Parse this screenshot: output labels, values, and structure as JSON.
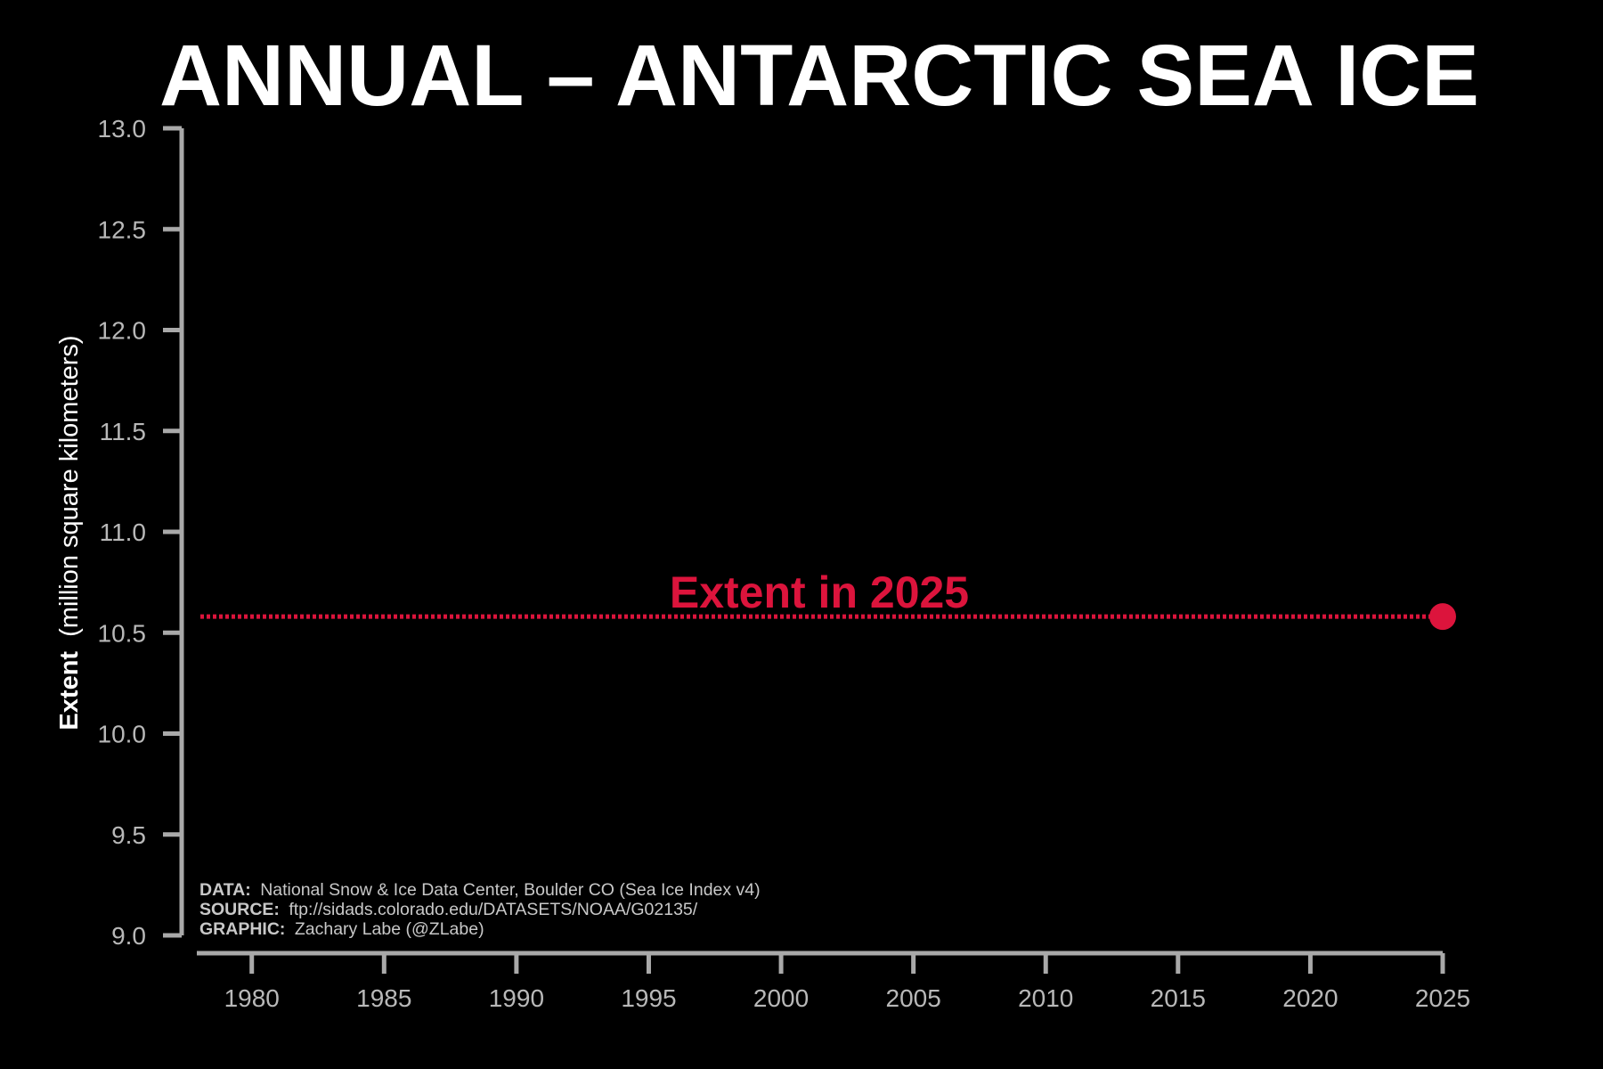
{
  "chart_data": {
    "type": "line",
    "title": "ANNUAL – ANTARCTIC SEA ICE",
    "ylabel_bold": "Extent",
    "ylabel_rest": "(million square kilometers)",
    "xlim": [
      1979,
      2025
    ],
    "ylim": [
      9.0,
      13.0
    ],
    "x_ticks": [
      1980,
      1985,
      1990,
      1995,
      2000,
      2005,
      2010,
      2015,
      2020,
      2025
    ],
    "y_ticks": [
      9.0,
      9.5,
      10.0,
      10.5,
      11.0,
      11.5,
      12.0,
      12.5,
      13.0
    ],
    "y_tick_labels": [
      "9.0",
      "9.5",
      "10.0",
      "10.5",
      "11.0",
      "11.5",
      "12.0",
      "12.5",
      "13.0"
    ],
    "grid": false,
    "reference_line": {
      "label": "Extent in 2025",
      "value": 10.58,
      "x_start": 1979,
      "x_end": 2025,
      "style": "dotted"
    },
    "series": [
      {
        "x": [
          2025
        ],
        "values": [
          10.58
        ]
      }
    ],
    "colors": {
      "background": "#000000",
      "accent": "#dc143c",
      "axis": "#a9a9a9",
      "text": "#ffffff",
      "tick_text": "#b8b8b8",
      "credit": "#c8c8c8"
    }
  },
  "credits": {
    "data_label": "DATA:",
    "data_text": "National Snow & Ice Data Center, Boulder CO (Sea Ice Index v4)",
    "source_label": "SOURCE:",
    "source_text": "ftp://sidads.colorado.edu/DATASETS/NOAA/G02135/",
    "graphic_label": "GRAPHIC:",
    "graphic_text": "Zachary Labe (@ZLabe)"
  }
}
